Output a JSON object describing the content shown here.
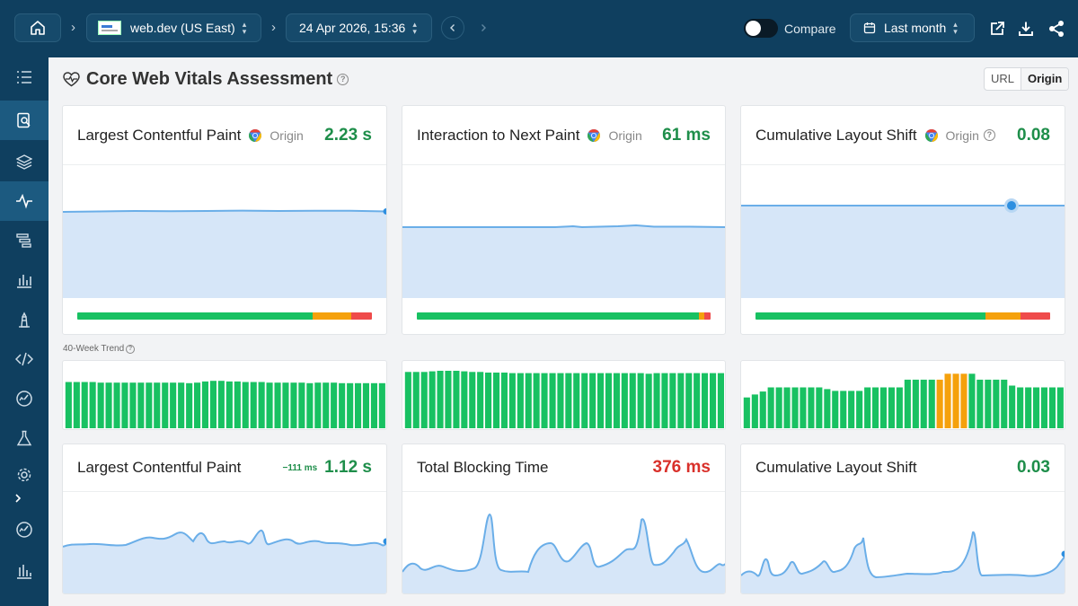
{
  "topbar": {
    "site_label": "web.dev (US East)",
    "date_label": "24 Apr 2026, 15:36",
    "compare_label": "Compare",
    "range_label": "Last month",
    "icons": [
      "home-icon",
      "site-thumbnail",
      "prev-icon",
      "next-icon",
      "calendar-icon",
      "external-link-icon",
      "download-icon",
      "share-icon"
    ]
  },
  "sidebar": {
    "items": [
      "list-icon",
      "search-page-icon",
      "layers-icon",
      "vitals-icon",
      "waterfall-icon",
      "bar-chart-icon",
      "lighthouse-icon",
      "code-icon",
      "speed-icon",
      "flask-icon",
      "gear-icon",
      "expand-icon",
      "speed-icon-2",
      "reports-icon"
    ],
    "active": "vitals-icon"
  },
  "header": {
    "title": "Core Web Vitals Assessment",
    "toggle": [
      "URL",
      "Origin"
    ],
    "selected": "Origin"
  },
  "colors": {
    "good": "#18c162",
    "needs_improvement": "#f5a10c",
    "poor": "#ef4b4b",
    "line": "#6aaee8",
    "fill": "#d6e6f8"
  },
  "vitals": [
    {
      "title": "Largest Contentful Paint",
      "scope": "Origin",
      "value": "2.23 s",
      "status": "good",
      "dist": [
        0.8,
        0.13,
        0.07
      ]
    },
    {
      "title": "Interaction to Next Paint",
      "scope": "Origin",
      "value": "61 ms",
      "status": "good",
      "dist": [
        0.96,
        0.02,
        0.02
      ]
    },
    {
      "title": "Cumulative Layout Shift",
      "scope": "Origin",
      "value": "0.08",
      "status": "good",
      "dist": [
        0.78,
        0.12,
        0.1
      ]
    }
  ],
  "trend": {
    "label": "40-Week Trend",
    "lcp": [
      0.78,
      0.78,
      0.78,
      0.78,
      0.77,
      0.77,
      0.77,
      0.77,
      0.77,
      0.77,
      0.77,
      0.77,
      0.77,
      0.77,
      0.77,
      0.76,
      0.77,
      0.79,
      0.8,
      0.8,
      0.79,
      0.79,
      0.78,
      0.78,
      0.78,
      0.77,
      0.77,
      0.77,
      0.77,
      0.77,
      0.76,
      0.77,
      0.77,
      0.77,
      0.76,
      0.76,
      0.76,
      0.76,
      0.76,
      0.76
    ],
    "inp": [
      0.95,
      0.95,
      0.95,
      0.96,
      0.97,
      0.97,
      0.97,
      0.96,
      0.95,
      0.95,
      0.94,
      0.94,
      0.94,
      0.93,
      0.93,
      0.93,
      0.93,
      0.93,
      0.93,
      0.93,
      0.93,
      0.93,
      0.93,
      0.93,
      0.93,
      0.93,
      0.93,
      0.93,
      0.93,
      0.93,
      0.92,
      0.93,
      0.93,
      0.93,
      0.93,
      0.93,
      0.93,
      0.93,
      0.93,
      0.93
    ],
    "cls": [
      0.52,
      0.57,
      0.62,
      0.69,
      0.69,
      0.69,
      0.69,
      0.69,
      0.69,
      0.69,
      0.66,
      0.63,
      0.63,
      0.63,
      0.63,
      0.69,
      0.69,
      0.69,
      0.69,
      0.69,
      0.82,
      0.82,
      0.82,
      0.82,
      0.82,
      0.92,
      0.92,
      0.92,
      0.92,
      0.82,
      0.82,
      0.82,
      0.82,
      0.72,
      0.69,
      0.69,
      0.69,
      0.69,
      0.69,
      0.69
    ],
    "cls_status": [
      "g",
      "g",
      "g",
      "g",
      "g",
      "g",
      "g",
      "g",
      "g",
      "g",
      "g",
      "g",
      "g",
      "g",
      "g",
      "g",
      "g",
      "g",
      "g",
      "g",
      "g",
      "g",
      "g",
      "g",
      "o",
      "o",
      "o",
      "o",
      "g",
      "g",
      "g",
      "g",
      "g",
      "g",
      "g",
      "g",
      "g",
      "g",
      "g",
      "g"
    ]
  },
  "lab": [
    {
      "title": "Largest Contentful Paint",
      "delta": "−111 ms",
      "value": "1.12 s",
      "status": "good"
    },
    {
      "title": "Total Blocking Time",
      "delta": "",
      "value": "376 ms",
      "status": "bad"
    },
    {
      "title": "Cumulative Layout Shift",
      "delta": "",
      "value": "0.03",
      "status": "good"
    }
  ]
}
